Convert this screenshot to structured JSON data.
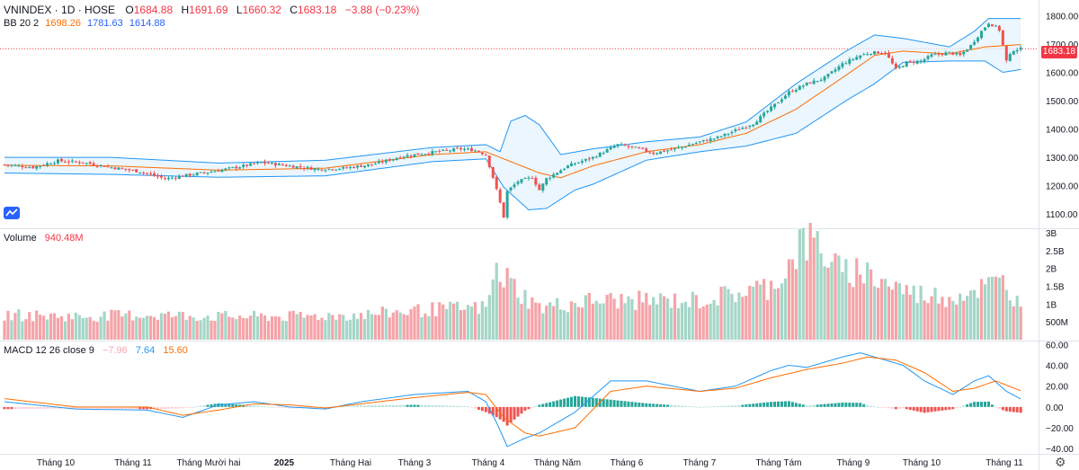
{
  "header": {
    "symbol": "VNINDEX",
    "interval": "1D",
    "exchange": "HOSE",
    "o_label": "O",
    "o": "1684.88",
    "h_label": "H",
    "h": "1691.69",
    "l_label": "L",
    "l": "1660.32",
    "c_label": "C",
    "c": "1683.18",
    "change": "−3.88 (−0.23%)"
  },
  "bb": {
    "label": "BB 20 2",
    "middle": "1698.26",
    "upper": "1781.63",
    "lower": "1614.88"
  },
  "volume": {
    "label": "Volume",
    "value": "940.48M"
  },
  "macd": {
    "label": "MACD 12 26 close 9",
    "hist": "−7.96",
    "macd": "7.64",
    "signal": "15.60"
  },
  "last_price": "1683.18",
  "colors": {
    "up": "#26a69a",
    "down": "#ef5350",
    "bb_mid": "#ff6d00",
    "bb_band": "#2196f3",
    "bb_fill": "#e3f2fd",
    "macd_line": "#2196f3",
    "signal_line": "#ff6d00",
    "vol_up": "#a5d6c7",
    "vol_down": "#f5a3a8"
  },
  "icons": {
    "logo": "tradingview-cloud-icon",
    "settings": "gear-icon"
  },
  "chart_data": {
    "type": "line",
    "series_kind": "candlestick-with-indicators",
    "x_ticks": [
      "Tháng 10",
      "Tháng 11",
      "Tháng Mười hai",
      "2025",
      "Tháng Hai",
      "Tháng 3",
      "Tháng 4",
      "Tháng Năm",
      "Tháng 6",
      "Tháng 7",
      "Tháng Tám",
      "Tháng 9",
      "Tháng 10",
      "Tháng 11"
    ],
    "price_ticks": [
      "1800.00",
      "1700.00",
      "1600.00",
      "1500.00",
      "1400.00",
      "1300.00",
      "1200.00",
      "1100.00"
    ],
    "price_range": [
      1050,
      1830
    ],
    "volume_ticks": [
      "3B",
      "2.5B",
      "2B",
      "1.5B",
      "1B",
      "500M"
    ],
    "volume_range": [
      0,
      3000000000
    ],
    "macd_ticks": [
      "60.00",
      "40.00",
      "20.00",
      "0.00",
      "−20.00",
      "−40.00"
    ],
    "macd_range": [
      -45,
      62
    ],
    "price_close_keypoints": [
      [
        0,
        1275
      ],
      [
        8,
        1265
      ],
      [
        15,
        1288
      ],
      [
        22,
        1282
      ],
      [
        30,
        1265
      ],
      [
        38,
        1250
      ],
      [
        45,
        1225
      ],
      [
        50,
        1235
      ],
      [
        58,
        1250
      ],
      [
        65,
        1265
      ],
      [
        72,
        1282
      ],
      [
        80,
        1270
      ],
      [
        88,
        1258
      ],
      [
        95,
        1262
      ],
      [
        103,
        1275
      ],
      [
        112,
        1305
      ],
      [
        120,
        1318
      ],
      [
        128,
        1330
      ],
      [
        132,
        1325
      ],
      [
        135,
        1310
      ],
      [
        137,
        1230
      ],
      [
        139,
        1140
      ],
      [
        140,
        1090
      ],
      [
        141,
        1180
      ],
      [
        144,
        1215
      ],
      [
        148,
        1230
      ],
      [
        150,
        1185
      ],
      [
        152,
        1225
      ],
      [
        158,
        1270
      ],
      [
        165,
        1300
      ],
      [
        172,
        1345
      ],
      [
        178,
        1330
      ],
      [
        182,
        1315
      ],
      [
        188,
        1330
      ],
      [
        195,
        1355
      ],
      [
        200,
        1370
      ],
      [
        205,
        1395
      ],
      [
        210,
        1420
      ],
      [
        215,
        1475
      ],
      [
        220,
        1530
      ],
      [
        225,
        1560
      ],
      [
        230,
        1580
      ],
      [
        235,
        1630
      ],
      [
        240,
        1660
      ],
      [
        243,
        1670
      ],
      [
        247,
        1670
      ],
      [
        250,
        1610
      ],
      [
        253,
        1635
      ],
      [
        257,
        1640
      ],
      [
        260,
        1660
      ],
      [
        265,
        1670
      ],
      [
        268,
        1660
      ],
      [
        271,
        1695
      ],
      [
        274,
        1745
      ],
      [
        276,
        1775
      ],
      [
        278,
        1760
      ],
      [
        279,
        1750
      ],
      [
        281,
        1640
      ],
      [
        283,
        1680
      ],
      [
        285,
        1683
      ]
    ],
    "bb_upper_keypoints": [
      [
        0,
        1300
      ],
      [
        30,
        1300
      ],
      [
        60,
        1280
      ],
      [
        90,
        1290
      ],
      [
        120,
        1335
      ],
      [
        135,
        1345
      ],
      [
        139,
        1320
      ],
      [
        142,
        1428
      ],
      [
        146,
        1448
      ],
      [
        150,
        1415
      ],
      [
        156,
        1310
      ],
      [
        165,
        1330
      ],
      [
        180,
        1355
      ],
      [
        195,
        1372
      ],
      [
        208,
        1425
      ],
      [
        222,
        1560
      ],
      [
        236,
        1675
      ],
      [
        244,
        1732
      ],
      [
        252,
        1720
      ],
      [
        265,
        1690
      ],
      [
        272,
        1745
      ],
      [
        276,
        1790
      ],
      [
        285,
        1790
      ]
    ],
    "bb_middle_keypoints": [
      [
        0,
        1272
      ],
      [
        30,
        1270
      ],
      [
        60,
        1255
      ],
      [
        90,
        1262
      ],
      [
        120,
        1310
      ],
      [
        135,
        1320
      ],
      [
        140,
        1295
      ],
      [
        150,
        1245
      ],
      [
        156,
        1228
      ],
      [
        165,
        1270
      ],
      [
        180,
        1320
      ],
      [
        195,
        1345
      ],
      [
        208,
        1385
      ],
      [
        222,
        1470
      ],
      [
        236,
        1590
      ],
      [
        244,
        1660
      ],
      [
        252,
        1675
      ],
      [
        265,
        1665
      ],
      [
        275,
        1690
      ],
      [
        285,
        1698
      ]
    ],
    "bb_lower_keypoints": [
      [
        0,
        1245
      ],
      [
        30,
        1240
      ],
      [
        60,
        1230
      ],
      [
        90,
        1235
      ],
      [
        120,
        1285
      ],
      [
        135,
        1295
      ],
      [
        140,
        1195
      ],
      [
        147,
        1115
      ],
      [
        152,
        1120
      ],
      [
        160,
        1185
      ],
      [
        165,
        1205
      ],
      [
        180,
        1290
      ],
      [
        195,
        1320
      ],
      [
        208,
        1340
      ],
      [
        222,
        1385
      ],
      [
        236,
        1500
      ],
      [
        244,
        1560
      ],
      [
        252,
        1635
      ],
      [
        265,
        1640
      ],
      [
        275,
        1640
      ],
      [
        280,
        1600
      ],
      [
        285,
        1610
      ]
    ],
    "volume_keypoints": [
      [
        0,
        700000000
      ],
      [
        20,
        650000000
      ],
      [
        40,
        700000000
      ],
      [
        60,
        650000000
      ],
      [
        80,
        650000000
      ],
      [
        100,
        700000000
      ],
      [
        120,
        850000000
      ],
      [
        135,
        900000000
      ],
      [
        138,
        1900000000
      ],
      [
        141,
        1700000000
      ],
      [
        146,
        1200000000
      ],
      [
        150,
        900000000
      ],
      [
        165,
        1100000000
      ],
      [
        180,
        1100000000
      ],
      [
        195,
        1100000000
      ],
      [
        205,
        1300000000
      ],
      [
        215,
        1500000000
      ],
      [
        220,
        2100000000
      ],
      [
        223,
        2700000000
      ],
      [
        228,
        2700000000
      ],
      [
        235,
        1800000000
      ],
      [
        240,
        2000000000
      ],
      [
        245,
        1700000000
      ],
      [
        255,
        1300000000
      ],
      [
        265,
        1200000000
      ],
      [
        275,
        1500000000
      ],
      [
        280,
        1600000000
      ],
      [
        285,
        940480000
      ]
    ],
    "macd_keypoints": [
      [
        0,
        5
      ],
      [
        20,
        -2
      ],
      [
        40,
        -3
      ],
      [
        50,
        -10
      ],
      [
        60,
        2
      ],
      [
        70,
        5
      ],
      [
        80,
        0
      ],
      [
        90,
        -2
      ],
      [
        100,
        5
      ],
      [
        115,
        12
      ],
      [
        130,
        15
      ],
      [
        135,
        5
      ],
      [
        138,
        -15
      ],
      [
        141,
        -38
      ],
      [
        146,
        -30
      ],
      [
        150,
        -25
      ],
      [
        160,
        -5
      ],
      [
        170,
        25
      ],
      [
        180,
        25
      ],
      [
        195,
        15
      ],
      [
        205,
        20
      ],
      [
        215,
        35
      ],
      [
        220,
        40
      ],
      [
        225,
        38
      ],
      [
        235,
        48
      ],
      [
        240,
        52
      ],
      [
        246,
        46
      ],
      [
        252,
        40
      ],
      [
        258,
        25
      ],
      [
        266,
        12
      ],
      [
        272,
        25
      ],
      [
        276,
        30
      ],
      [
        281,
        15
      ],
      [
        285,
        7.64
      ]
    ],
    "signal_keypoints": [
      [
        0,
        8
      ],
      [
        20,
        0
      ],
      [
        40,
        0
      ],
      [
        50,
        -8
      ],
      [
        60,
        -3
      ],
      [
        70,
        3
      ],
      [
        80,
        2
      ],
      [
        90,
        -1
      ],
      [
        100,
        3
      ],
      [
        115,
        9
      ],
      [
        130,
        14
      ],
      [
        135,
        12
      ],
      [
        140,
        -10
      ],
      [
        146,
        -25
      ],
      [
        150,
        -28
      ],
      [
        160,
        -20
      ],
      [
        170,
        15
      ],
      [
        180,
        20
      ],
      [
        195,
        15
      ],
      [
        205,
        18
      ],
      [
        215,
        28
      ],
      [
        225,
        36
      ],
      [
        235,
        42
      ],
      [
        242,
        48
      ],
      [
        250,
        45
      ],
      [
        258,
        33
      ],
      [
        266,
        15
      ],
      [
        272,
        18
      ],
      [
        278,
        25
      ],
      [
        285,
        15.6
      ]
    ]
  }
}
